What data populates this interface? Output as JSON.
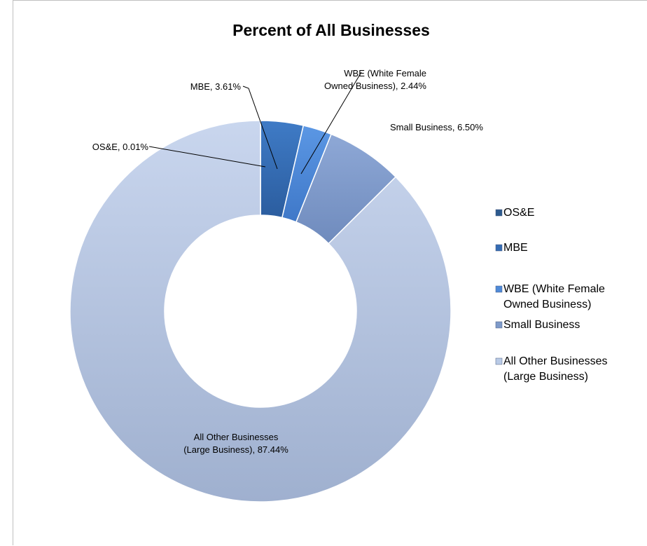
{
  "chart_data": {
    "type": "pie",
    "subtype": "doughnut",
    "title": "Percent of All Businesses",
    "categories": [
      "OS&E",
      "MBE",
      "WBE (White Female Owned Business)",
      "Small Business",
      "All Other Businesses (Large Business)"
    ],
    "values": [
      0.01,
      3.61,
      2.44,
      6.5,
      87.44
    ],
    "unit": "%",
    "data_labels": [
      "OS&E, 0.01%",
      "MBE, 3.61%",
      "WBE (White Female Owned Business), 2.44%",
      "Small Business, 6.50%",
      "All Other Businesses (Large Business), 87.44%"
    ],
    "legend": {
      "placement": "right",
      "entries": [
        "OS&E",
        "MBE",
        "WBE (White Female Owned Business)",
        "Small Business",
        "All Other Businesses (Large Business)"
      ]
    },
    "colors": [
      "#2d5a8e",
      "#356cb3",
      "#4f8ad8",
      "#7e9ac9",
      "#b9cae6"
    ]
  }
}
